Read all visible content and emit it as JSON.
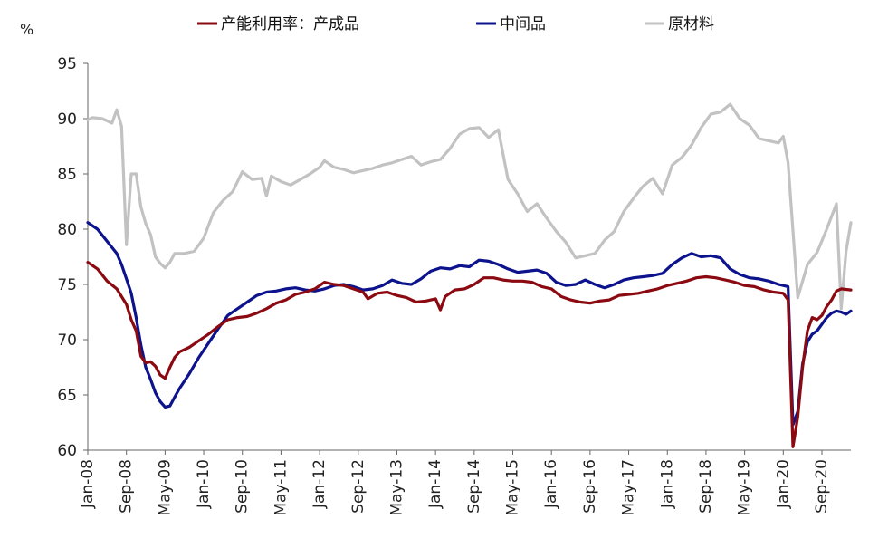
{
  "chart_data": {
    "type": "line",
    "ylabel": "%",
    "ylim": [
      60,
      95
    ],
    "yticks": [
      "95",
      "90",
      "85",
      "80",
      "75",
      "70",
      "65",
      "60"
    ],
    "xtick_labels": [
      "Jan-08",
      "Sep-08",
      "May-09",
      "Jan-10",
      "Sep-10",
      "May-11",
      "Jan-12",
      "Sep-12",
      "May-13",
      "Jan-14",
      "Sep-14",
      "May-15",
      "Jan-16",
      "Sep-16",
      "May-17",
      "Jan-18",
      "Sep-18",
      "May-19",
      "Jan-20",
      "Sep-20"
    ],
    "x_start": "2008-01",
    "x_end": "2021-03",
    "grid": false,
    "legend_position": "top",
    "series": [
      {
        "name": "产能利用率：产成品",
        "color": "#8b0a12",
        "points": [
          [
            "2008-01",
            77.0
          ],
          [
            "2008-03",
            76.4
          ],
          [
            "2008-05",
            75.3
          ],
          [
            "2008-07",
            74.6
          ],
          [
            "2008-09",
            73.2
          ],
          [
            "2008-10",
            71.8
          ],
          [
            "2008-11",
            70.8
          ],
          [
            "2008-12",
            68.5
          ],
          [
            "2009-01",
            67.9
          ],
          [
            "2009-02",
            68.0
          ],
          [
            "2009-03",
            67.6
          ],
          [
            "2009-04",
            66.8
          ],
          [
            "2009-05",
            66.5
          ],
          [
            "2009-06",
            67.5
          ],
          [
            "2009-07",
            68.4
          ],
          [
            "2009-08",
            68.9
          ],
          [
            "2009-10",
            69.3
          ],
          [
            "2009-12",
            69.9
          ],
          [
            "2010-02",
            70.5
          ],
          [
            "2010-04",
            71.2
          ],
          [
            "2010-06",
            71.8
          ],
          [
            "2010-08",
            72.0
          ],
          [
            "2010-10",
            72.1
          ],
          [
            "2010-12",
            72.4
          ],
          [
            "2011-02",
            72.8
          ],
          [
            "2011-04",
            73.3
          ],
          [
            "2011-06",
            73.6
          ],
          [
            "2011-08",
            74.1
          ],
          [
            "2011-10",
            74.3
          ],
          [
            "2011-12",
            74.6
          ],
          [
            "2012-02",
            75.2
          ],
          [
            "2012-04",
            75.0
          ],
          [
            "2012-06",
            74.9
          ],
          [
            "2012-08",
            74.6
          ],
          [
            "2012-10",
            74.3
          ],
          [
            "2012-11",
            73.7
          ],
          [
            "2013-01",
            74.2
          ],
          [
            "2013-03",
            74.3
          ],
          [
            "2013-05",
            74.0
          ],
          [
            "2013-07",
            73.8
          ],
          [
            "2013-09",
            73.4
          ],
          [
            "2013-11",
            73.5
          ],
          [
            "2014-01",
            73.7
          ],
          [
            "2014-02",
            72.7
          ],
          [
            "2014-03",
            73.9
          ],
          [
            "2014-05",
            74.5
          ],
          [
            "2014-07",
            74.6
          ],
          [
            "2014-09",
            75.0
          ],
          [
            "2014-11",
            75.6
          ],
          [
            "2015-01",
            75.6
          ],
          [
            "2015-03",
            75.4
          ],
          [
            "2015-05",
            75.3
          ],
          [
            "2015-07",
            75.3
          ],
          [
            "2015-09",
            75.2
          ],
          [
            "2015-11",
            74.8
          ],
          [
            "2016-01",
            74.6
          ],
          [
            "2016-03",
            73.9
          ],
          [
            "2016-05",
            73.6
          ],
          [
            "2016-07",
            73.4
          ],
          [
            "2016-09",
            73.3
          ],
          [
            "2016-11",
            73.5
          ],
          [
            "2017-01",
            73.6
          ],
          [
            "2017-03",
            74.0
          ],
          [
            "2017-05",
            74.1
          ],
          [
            "2017-07",
            74.2
          ],
          [
            "2017-09",
            74.4
          ],
          [
            "2017-11",
            74.6
          ],
          [
            "2018-01",
            74.9
          ],
          [
            "2018-03",
            75.1
          ],
          [
            "2018-05",
            75.3
          ],
          [
            "2018-07",
            75.6
          ],
          [
            "2018-09",
            75.7
          ],
          [
            "2018-11",
            75.6
          ],
          [
            "2019-01",
            75.4
          ],
          [
            "2019-03",
            75.2
          ],
          [
            "2019-05",
            74.9
          ],
          [
            "2019-07",
            74.8
          ],
          [
            "2019-09",
            74.5
          ],
          [
            "2019-11",
            74.3
          ],
          [
            "2020-01",
            74.2
          ],
          [
            "2020-02",
            73.6
          ],
          [
            "2020-03",
            60.3
          ],
          [
            "2020-04",
            63.0
          ],
          [
            "2020-05",
            67.5
          ],
          [
            "2020-06",
            70.8
          ],
          [
            "2020-07",
            72.0
          ],
          [
            "2020-08",
            71.8
          ],
          [
            "2020-09",
            72.2
          ],
          [
            "2020-10",
            73.0
          ],
          [
            "2020-11",
            73.6
          ],
          [
            "2020-12",
            74.4
          ],
          [
            "2021-01",
            74.6
          ],
          [
            "2021-03",
            74.5
          ]
        ]
      },
      {
        "name": "中间品",
        "color": "#0c138c",
        "points": [
          [
            "2008-01",
            80.6
          ],
          [
            "2008-03",
            80.0
          ],
          [
            "2008-05",
            78.9
          ],
          [
            "2008-07",
            77.8
          ],
          [
            "2008-08",
            76.8
          ],
          [
            "2008-09",
            75.5
          ],
          [
            "2008-10",
            74.2
          ],
          [
            "2008-11",
            72.0
          ],
          [
            "2008-12",
            69.5
          ],
          [
            "2009-01",
            67.5
          ],
          [
            "2009-02",
            66.4
          ],
          [
            "2009-03",
            65.2
          ],
          [
            "2009-04",
            64.4
          ],
          [
            "2009-05",
            63.9
          ],
          [
            "2009-06",
            64.0
          ],
          [
            "2009-07",
            64.8
          ],
          [
            "2009-08",
            65.6
          ],
          [
            "2009-10",
            66.9
          ],
          [
            "2009-12",
            68.4
          ],
          [
            "2010-02",
            69.7
          ],
          [
            "2010-04",
            71.0
          ],
          [
            "2010-06",
            72.2
          ],
          [
            "2010-08",
            72.8
          ],
          [
            "2010-10",
            73.4
          ],
          [
            "2010-12",
            74.0
          ],
          [
            "2011-02",
            74.3
          ],
          [
            "2011-04",
            74.4
          ],
          [
            "2011-06",
            74.6
          ],
          [
            "2011-08",
            74.7
          ],
          [
            "2011-10",
            74.5
          ],
          [
            "2011-12",
            74.4
          ],
          [
            "2012-02",
            74.6
          ],
          [
            "2012-04",
            74.9
          ],
          [
            "2012-06",
            75.0
          ],
          [
            "2012-08",
            74.8
          ],
          [
            "2012-10",
            74.5
          ],
          [
            "2012-12",
            74.6
          ],
          [
            "2013-02",
            74.9
          ],
          [
            "2013-04",
            75.4
          ],
          [
            "2013-06",
            75.1
          ],
          [
            "2013-08",
            75.0
          ],
          [
            "2013-10",
            75.5
          ],
          [
            "2013-12",
            76.2
          ],
          [
            "2014-02",
            76.5
          ],
          [
            "2014-04",
            76.4
          ],
          [
            "2014-06",
            76.7
          ],
          [
            "2014-08",
            76.6
          ],
          [
            "2014-10",
            77.2
          ],
          [
            "2014-12",
            77.1
          ],
          [
            "2015-02",
            76.8
          ],
          [
            "2015-04",
            76.4
          ],
          [
            "2015-06",
            76.1
          ],
          [
            "2015-08",
            76.2
          ],
          [
            "2015-10",
            76.3
          ],
          [
            "2015-12",
            76.0
          ],
          [
            "2016-02",
            75.2
          ],
          [
            "2016-04",
            74.9
          ],
          [
            "2016-06",
            75.0
          ],
          [
            "2016-08",
            75.4
          ],
          [
            "2016-10",
            75.0
          ],
          [
            "2016-12",
            74.7
          ],
          [
            "2017-02",
            75.0
          ],
          [
            "2017-04",
            75.4
          ],
          [
            "2017-06",
            75.6
          ],
          [
            "2017-08",
            75.7
          ],
          [
            "2017-10",
            75.8
          ],
          [
            "2017-12",
            76.0
          ],
          [
            "2018-02",
            76.8
          ],
          [
            "2018-04",
            77.4
          ],
          [
            "2018-06",
            77.8
          ],
          [
            "2018-08",
            77.5
          ],
          [
            "2018-10",
            77.6
          ],
          [
            "2018-12",
            77.4
          ],
          [
            "2019-02",
            76.4
          ],
          [
            "2019-04",
            75.9
          ],
          [
            "2019-06",
            75.6
          ],
          [
            "2019-08",
            75.5
          ],
          [
            "2019-10",
            75.3
          ],
          [
            "2019-12",
            75.0
          ],
          [
            "2020-02",
            74.8
          ],
          [
            "2020-03",
            62.3
          ],
          [
            "2020-04",
            63.5
          ],
          [
            "2020-05",
            67.8
          ],
          [
            "2020-06",
            69.8
          ],
          [
            "2020-07",
            70.5
          ],
          [
            "2020-08",
            70.8
          ],
          [
            "2020-09",
            71.4
          ],
          [
            "2020-10",
            72.0
          ],
          [
            "2020-11",
            72.4
          ],
          [
            "2020-12",
            72.6
          ],
          [
            "2021-01",
            72.5
          ],
          [
            "2021-02",
            72.3
          ],
          [
            "2021-03",
            72.6
          ]
        ]
      },
      {
        "name": "原材料",
        "color": "#c2c2c2",
        "points": [
          [
            "2008-01",
            89.9
          ],
          [
            "2008-02",
            90.1
          ],
          [
            "2008-04",
            90.0
          ],
          [
            "2008-06",
            89.6
          ],
          [
            "2008-07",
            90.8
          ],
          [
            "2008-08",
            89.3
          ],
          [
            "2008-09",
            78.6
          ],
          [
            "2008-10",
            85.0
          ],
          [
            "2008-11",
            85.0
          ],
          [
            "2008-12",
            82.0
          ],
          [
            "2009-01",
            80.5
          ],
          [
            "2009-02",
            79.5
          ],
          [
            "2009-03",
            77.5
          ],
          [
            "2009-04",
            76.9
          ],
          [
            "2009-05",
            76.5
          ],
          [
            "2009-06",
            77.0
          ],
          [
            "2009-07",
            77.8
          ],
          [
            "2009-09",
            77.8
          ],
          [
            "2009-11",
            78.0
          ],
          [
            "2010-01",
            79.2
          ],
          [
            "2010-03",
            81.5
          ],
          [
            "2010-05",
            82.6
          ],
          [
            "2010-07",
            83.4
          ],
          [
            "2010-09",
            85.2
          ],
          [
            "2010-11",
            84.5
          ],
          [
            "2011-01",
            84.6
          ],
          [
            "2011-02",
            83.0
          ],
          [
            "2011-03",
            84.8
          ],
          [
            "2011-05",
            84.3
          ],
          [
            "2011-07",
            84.0
          ],
          [
            "2011-09",
            84.5
          ],
          [
            "2011-11",
            85.0
          ],
          [
            "2012-01",
            85.6
          ],
          [
            "2012-02",
            86.2
          ],
          [
            "2012-04",
            85.6
          ],
          [
            "2012-06",
            85.4
          ],
          [
            "2012-08",
            85.1
          ],
          [
            "2012-10",
            85.3
          ],
          [
            "2012-12",
            85.5
          ],
          [
            "2013-02",
            85.8
          ],
          [
            "2013-04",
            86.0
          ],
          [
            "2013-06",
            86.3
          ],
          [
            "2013-08",
            86.6
          ],
          [
            "2013-10",
            85.8
          ],
          [
            "2013-12",
            86.1
          ],
          [
            "2014-02",
            86.3
          ],
          [
            "2014-04",
            87.3
          ],
          [
            "2014-06",
            88.6
          ],
          [
            "2014-08",
            89.1
          ],
          [
            "2014-10",
            89.2
          ],
          [
            "2014-12",
            88.3
          ],
          [
            "2015-02",
            89.0
          ],
          [
            "2015-04",
            84.5
          ],
          [
            "2015-06",
            83.2
          ],
          [
            "2015-08",
            81.6
          ],
          [
            "2015-10",
            82.3
          ],
          [
            "2015-12",
            81.0
          ],
          [
            "2016-02",
            79.8
          ],
          [
            "2016-04",
            78.8
          ],
          [
            "2016-06",
            77.4
          ],
          [
            "2016-08",
            77.6
          ],
          [
            "2016-10",
            77.8
          ],
          [
            "2016-12",
            79.0
          ],
          [
            "2017-02",
            79.8
          ],
          [
            "2017-04",
            81.6
          ],
          [
            "2017-06",
            82.8
          ],
          [
            "2017-08",
            83.9
          ],
          [
            "2017-10",
            84.6
          ],
          [
            "2017-12",
            83.2
          ],
          [
            "2018-02",
            85.8
          ],
          [
            "2018-04",
            86.5
          ],
          [
            "2018-06",
            87.6
          ],
          [
            "2018-08",
            89.2
          ],
          [
            "2018-10",
            90.4
          ],
          [
            "2018-12",
            90.6
          ],
          [
            "2019-02",
            91.3
          ],
          [
            "2019-04",
            90.0
          ],
          [
            "2019-06",
            89.4
          ],
          [
            "2019-08",
            88.2
          ],
          [
            "2019-10",
            88.0
          ],
          [
            "2019-12",
            87.8
          ],
          [
            "2020-01",
            88.4
          ],
          [
            "2020-02",
            86.0
          ],
          [
            "2020-04",
            73.8
          ],
          [
            "2020-06",
            76.8
          ],
          [
            "2020-08",
            77.9
          ],
          [
            "2020-10",
            80.0
          ],
          [
            "2020-12",
            82.3
          ],
          [
            "2021-01",
            72.8
          ],
          [
            "2021-02",
            78.0
          ],
          [
            "2021-03",
            80.6
          ]
        ]
      }
    ]
  }
}
